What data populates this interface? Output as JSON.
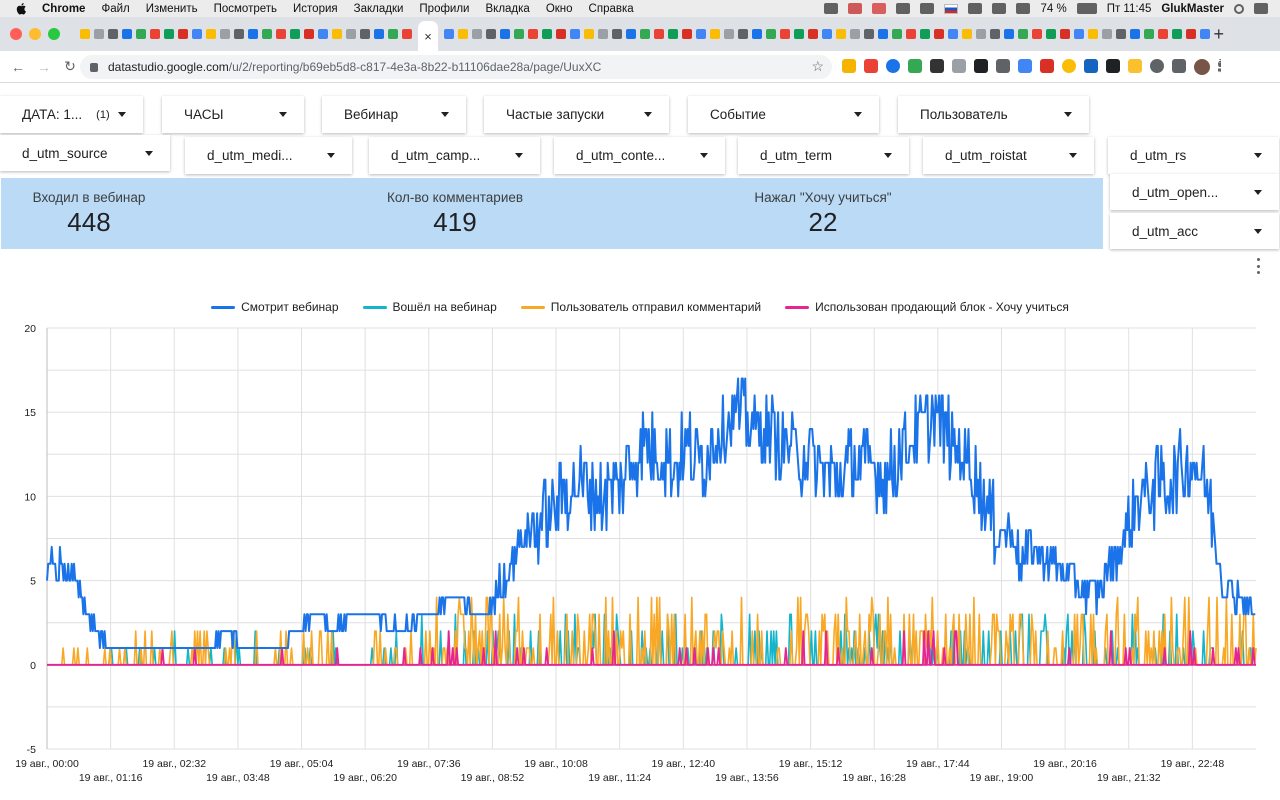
{
  "menubar": {
    "app": "Chrome",
    "items": [
      "Файл",
      "Изменить",
      "Посмотреть",
      "История",
      "Закладки",
      "Профили",
      "Вкладка",
      "Окно",
      "Справка"
    ],
    "battery": "74 %",
    "clock": "Пт 11:45",
    "user": "GlukMaster"
  },
  "browser": {
    "url_host": "datastudio.google.com",
    "url_path": "/u/2/reporting/b69eb5d8-c817-4e3a-8b22-b11106dae28a/page/UuxXC",
    "active_tab_close": "×",
    "new_tab": "+"
  },
  "filters": {
    "row1": [
      {
        "label": "ДАТА: 1...",
        "count": "(1)"
      },
      {
        "label": "ЧАСЫ"
      },
      {
        "label": "Вебинар"
      },
      {
        "label": "Частые запуски"
      },
      {
        "label": "Событие"
      },
      {
        "label": "Пользователь"
      }
    ],
    "row2": [
      {
        "label": "d_utm_source"
      },
      {
        "label": "d_utm_medi..."
      },
      {
        "label": "d_utm_camp..."
      },
      {
        "label": "d_utm_conte..."
      },
      {
        "label": "d_utm_term"
      },
      {
        "label": "d_utm_roistat"
      },
      {
        "label": "d_utm_rs"
      }
    ],
    "side": [
      {
        "label": "d_utm_open..."
      },
      {
        "label": "d_utm_acc"
      }
    ]
  },
  "scorecards": [
    {
      "title": "Входил в вебинар",
      "value": "448"
    },
    {
      "title": "Кол-во комментариев",
      "value": "419"
    },
    {
      "title": "Нажал \"Хочу учиться\"",
      "value": "22"
    }
  ],
  "colors": {
    "series_watching": "#1a73e8",
    "series_joined": "#12b5cb",
    "series_comment": "#f9a825",
    "series_cta": "#e52592",
    "scorecard_bg": "#bbdaf5"
  },
  "chart_data": {
    "type": "line",
    "ylim": [
      -5,
      20
    ],
    "yticks": [
      20,
      15,
      10,
      5,
      0,
      -5
    ],
    "xlim_minutes": [
      0,
      1440
    ],
    "grid": true,
    "legend_position": "top",
    "x_tick_labels": [
      "19 авг., 00:00",
      "19 авг., 01:16",
      "19 авг., 02:32",
      "19 авг., 03:48",
      "19 авг., 05:04",
      "19 авг., 06:20",
      "19 авг., 07:36",
      "19 авг., 08:52",
      "19 авг., 10:08",
      "19 авг., 11:24",
      "19 авг., 12:40",
      "19 авг., 13:56",
      "19 авг., 15:12",
      "19 авг., 16:28",
      "19 авг., 17:44",
      "19 авг., 19:00",
      "19 авг., 20:16",
      "19 авг., 21:32",
      "19 авг., 22:48"
    ],
    "series": [
      {
        "name": "Смотрит вебинар",
        "x_minutes": [
          0,
          20,
          30,
          40,
          60,
          76,
          100,
          130,
          152,
          200,
          215,
          240,
          280,
          300,
          320,
          340,
          365,
          390,
          420,
          456,
          480,
          520,
          545,
          560,
          575,
          600,
          612,
          630,
          660,
          684,
          710,
          750,
          760,
          780,
          800,
          820,
          850,
          880,
          912,
          940,
          960,
          980,
          1000,
          1010,
          1020,
          1040,
          1060,
          1080,
          1100,
          1116,
          1130,
          1150,
          1160,
          1170,
          1200,
          1225,
          1250,
          1265,
          1280,
          1300,
          1340,
          1360,
          1380,
          1400,
          1420,
          1440
        ],
        "values": [
          6,
          6,
          5,
          4,
          2,
          1,
          1,
          1,
          1,
          1,
          2,
          1,
          1,
          2,
          3,
          2,
          3,
          3,
          2,
          3,
          4,
          3,
          5,
          7,
          8,
          9,
          10,
          11,
          10,
          11,
          13,
          12,
          13,
          12,
          14,
          15,
          14,
          13,
          12,
          11,
          12,
          12,
          11,
          12,
          13,
          14,
          15,
          13,
          12,
          10,
          8,
          8,
          6,
          7,
          6,
          5,
          4,
          6,
          7,
          10,
          11,
          12,
          11,
          5,
          4,
          3
        ]
      },
      {
        "name": "Вошёл на вебинар",
        "type": "spikes",
        "min": 0,
        "max": 3
      },
      {
        "name": "Пользователь отправил комментарий",
        "type": "spikes",
        "min": 0,
        "max": 4
      },
      {
        "name": "Использован продающий блок - Хочу учиться",
        "type": "spikes",
        "min": 0,
        "max": 2
      }
    ]
  }
}
